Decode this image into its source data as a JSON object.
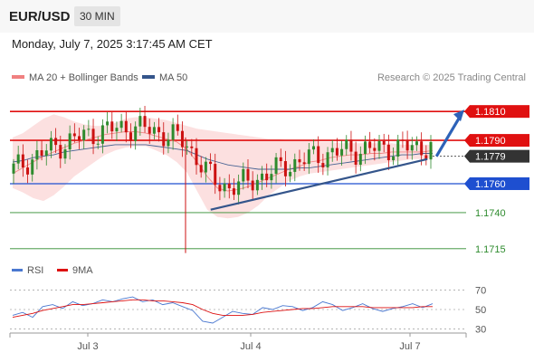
{
  "header": {
    "symbol": "EUR/USD",
    "timeframe": "30 MIN",
    "timestamp": "Monday, July 7, 2025 3:17:45 AM CET"
  },
  "legend": {
    "ma20_label": "MA 20 + Bollinger Bands",
    "ma50_label": "MA 50",
    "credit": "Research © 2025 Trading Central",
    "rsi_label": "RSI",
    "rsi_ma_label": "9MA"
  },
  "colors": {
    "ma20": "#f08080",
    "band_fill": "#fbdada",
    "ma50": "#34558b",
    "resistance": "#e01010",
    "support_blue": "#1e4fd0",
    "support_green": "#2e8b2e",
    "trendline": "#34558b",
    "candle_up": "#2e8b2e",
    "candle_down": "#cc1111",
    "last_price_box": "#333333",
    "rsi": "#4a78d0",
    "rsi_ma": "#dd1111"
  },
  "chart_data": [
    {
      "type": "candlestick",
      "xaxis_ticks": [
        "Jul 3",
        "Jul 4",
        "Jul 7"
      ],
      "ylim": [
        1.1708,
        1.1822
      ],
      "levels": [
        {
          "value": 1.181,
          "label": "1.1810",
          "style": "resistance"
        },
        {
          "value": 1.179,
          "label": "1.1790",
          "style": "resistance"
        },
        {
          "value": 1.1779,
          "label": "1.1779",
          "style": "last"
        },
        {
          "value": 1.176,
          "label": "1.1760",
          "style": "support_blue"
        },
        {
          "value": 1.174,
          "label": "1.1740",
          "style": "support_green"
        },
        {
          "value": 1.1715,
          "label": "1.1715",
          "style": "support_green"
        }
      ],
      "last_price": 1.1779,
      "trendline": {
        "from": [
          0.44,
          1.1742
        ],
        "to": [
          0.915,
          1.1777
        ]
      },
      "forecast_arrow": {
        "from": [
          0.935,
          1.1779
        ],
        "to": [
          1.0,
          1.181
        ]
      },
      "series": [
        {
          "name": "MA 20",
          "values": [
            1.1767,
            1.1771,
            1.1775,
            1.1779,
            1.1782,
            1.1785,
            1.1788,
            1.179,
            1.1792,
            1.1794,
            1.1795,
            1.1796,
            1.1796,
            1.1795,
            1.1793,
            1.1791,
            1.1789,
            1.1784,
            1.1775,
            1.1765,
            1.1757,
            1.1755,
            1.1756,
            1.1758,
            1.1761,
            1.1764,
            1.1767,
            1.177,
            1.1772,
            1.1775,
            1.1776,
            1.1778,
            1.1779,
            1.178,
            1.178,
            1.1781,
            1.1781,
            1.1782,
            1.1782,
            1.1782,
            1.1782,
            1.1783
          ]
        },
        {
          "name": "MA 50",
          "values": [
            1.1775,
            1.1776,
            1.1778,
            1.1779,
            1.178,
            1.1782,
            1.1783,
            1.1784,
            1.1785,
            1.1786,
            1.1787,
            1.1787,
            1.1787,
            1.1787,
            1.1786,
            1.1785,
            1.1784,
            1.1783,
            1.178,
            1.1777,
            1.1775,
            1.1773,
            1.1772,
            1.1771,
            1.177,
            1.177,
            1.177,
            1.177,
            1.1771,
            1.1771,
            1.1772,
            1.1773,
            1.1774,
            1.1775,
            1.1776,
            1.1777,
            1.1778,
            1.1779,
            1.178,
            1.178,
            1.1781,
            1.1781
          ]
        }
      ],
      "upper_band": [
        1.1792,
        1.1795,
        1.18,
        1.1805,
        1.1808,
        1.1806,
        1.1803,
        1.1801,
        1.18,
        1.18,
        1.1802,
        1.1805,
        1.1806,
        1.1806,
        1.1805,
        1.1804,
        1.1802,
        1.18,
        1.1798,
        1.1797,
        1.1796,
        1.1795,
        1.1794,
        1.1793,
        1.1792,
        1.1791,
        1.1791,
        1.179,
        1.179,
        1.179,
        1.1789,
        1.1789,
        1.1788,
        1.1788,
        1.1788,
        1.1788,
        1.1788,
        1.1788,
        1.1787,
        1.1787,
        1.1787,
        1.1787
      ],
      "lower_band": [
        1.1757,
        1.1754,
        1.175,
        1.1748,
        1.1752,
        1.1758,
        1.1765,
        1.177,
        1.1775,
        1.178,
        1.1783,
        1.1785,
        1.1786,
        1.1786,
        1.1783,
        1.178,
        1.1775,
        1.1768,
        1.1755,
        1.1742,
        1.1737,
        1.1736,
        1.1737,
        1.174,
        1.1745,
        1.1752,
        1.1757,
        1.1762,
        1.1765,
        1.1767,
        1.1768,
        1.1769,
        1.177,
        1.1771,
        1.1772,
        1.1773,
        1.1774,
        1.1775,
        1.1776,
        1.1777,
        1.1777,
        1.1778
      ]
    },
    {
      "type": "line",
      "name": "RSI",
      "yticks": [
        70,
        50,
        30
      ],
      "ylim": [
        22,
        78
      ],
      "series": [
        {
          "name": "RSI",
          "values": [
            44,
            47,
            42,
            53,
            55,
            51,
            58,
            54,
            56,
            60,
            58,
            61,
            63,
            58,
            60,
            55,
            57,
            53,
            49,
            38,
            36,
            42,
            48,
            46,
            45,
            52,
            50,
            54,
            53,
            49,
            52,
            58,
            55,
            49,
            52,
            56,
            51,
            48,
            51,
            53,
            56,
            52,
            56
          ]
        },
        {
          "name": "9MA",
          "values": [
            42,
            44,
            46,
            49,
            51,
            53,
            55,
            55,
            56,
            57,
            58,
            59,
            60,
            60,
            59,
            59,
            58,
            57,
            55,
            50,
            46,
            44,
            44,
            44,
            45,
            47,
            48,
            49,
            50,
            51,
            51,
            52,
            53,
            53,
            53,
            53,
            52,
            52,
            52,
            52,
            52,
            53,
            53
          ]
        }
      ]
    }
  ]
}
